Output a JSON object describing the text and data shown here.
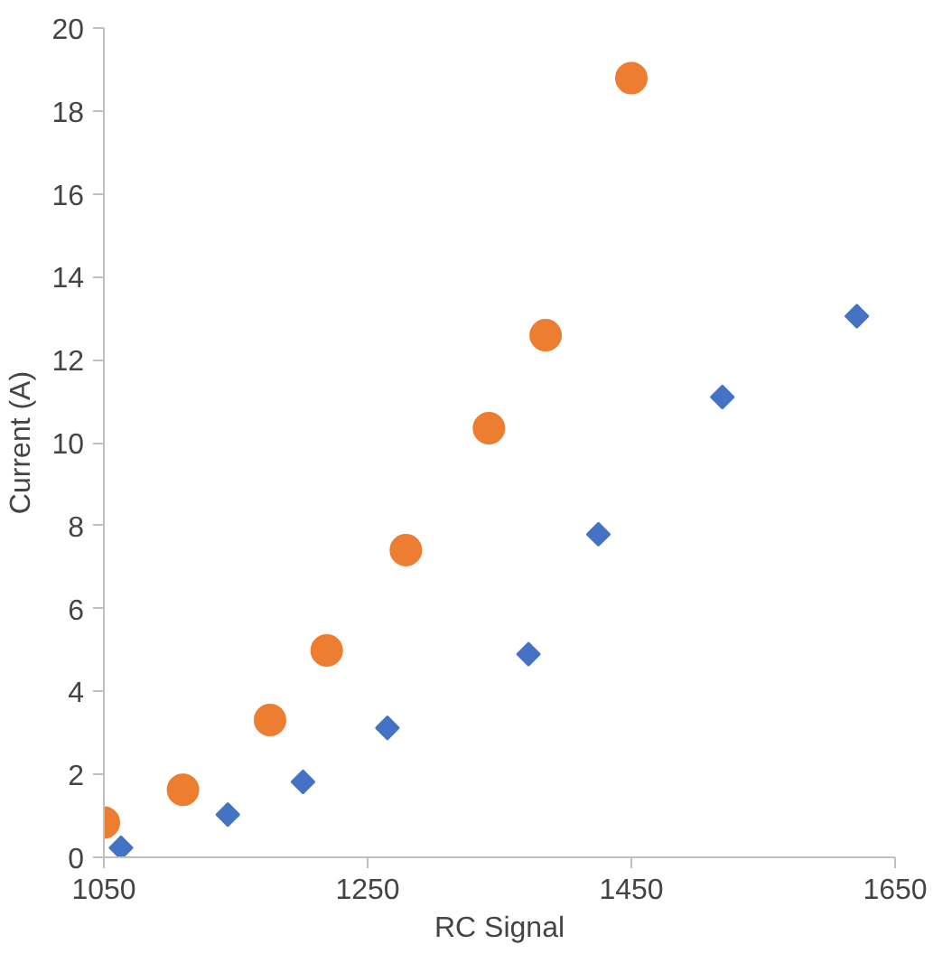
{
  "chart_data": {
    "type": "scatter",
    "xlabel": "RC Signal",
    "ylabel": "Current (A)",
    "xlim": [
      1050,
      1650
    ],
    "xticks": [
      1050,
      1250,
      1450,
      1650
    ],
    "ylim": [
      0,
      20
    ],
    "yticks": [
      0,
      2,
      4,
      6,
      8,
      10,
      12,
      14,
      16,
      18,
      20
    ],
    "grid": false,
    "series": [
      {
        "color": "#ed7d31",
        "marker": "circle",
        "x": [
          1050,
          1110,
          1176,
          1219,
          1279,
          1342,
          1385,
          1450
        ],
        "values": [
          0.84,
          1.63,
          3.31,
          4.99,
          7.41,
          10.35,
          12.59,
          18.79
        ]
      },
      {
        "color": "#4472c4",
        "marker": "diamond",
        "x": [
          1063,
          1144,
          1201,
          1265,
          1372,
          1425,
          1519,
          1621
        ],
        "values": [
          0.23,
          1.03,
          1.82,
          3.12,
          4.9,
          7.79,
          11.1,
          13.05
        ]
      }
    ]
  }
}
